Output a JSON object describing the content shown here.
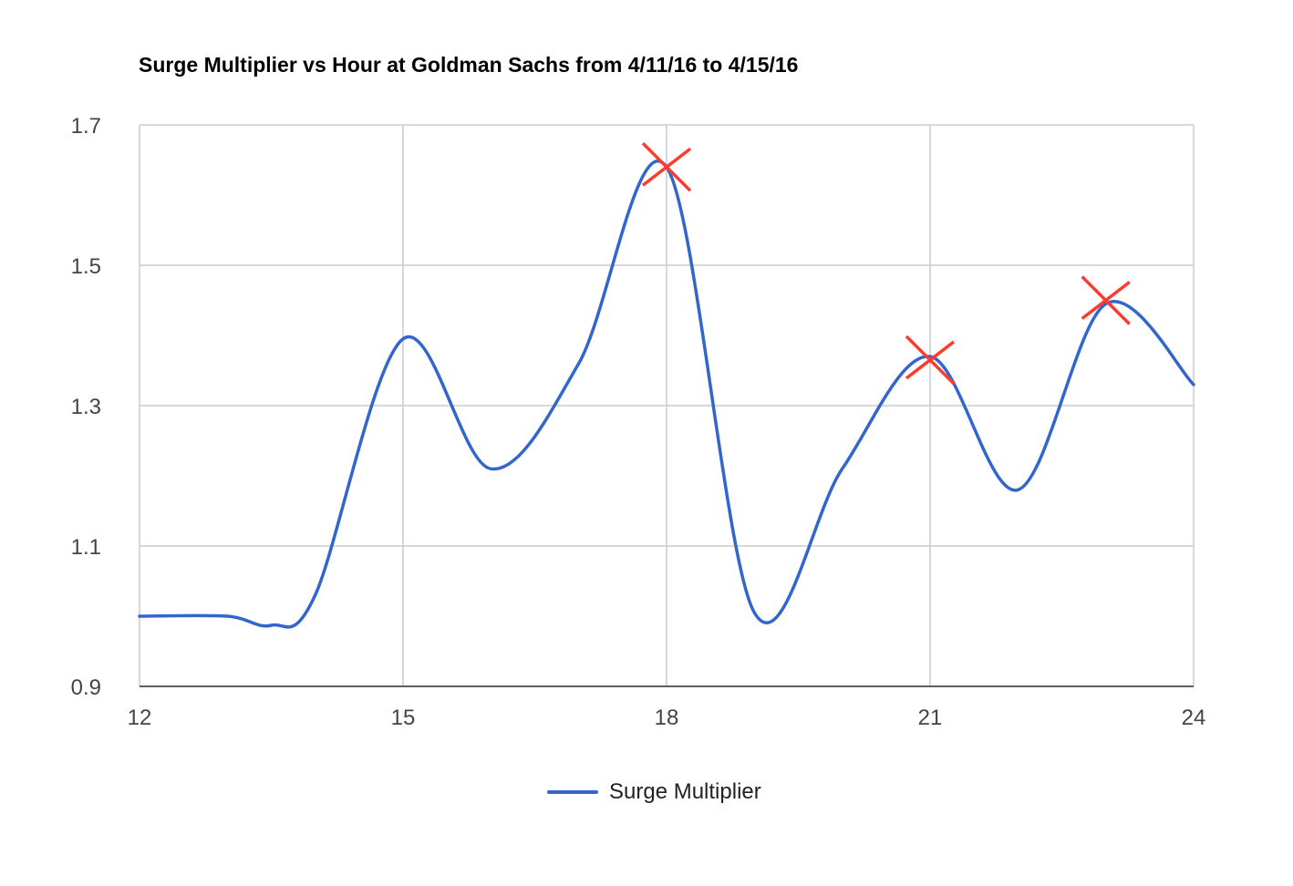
{
  "chart_data": {
    "type": "line",
    "title": "Surge Multiplier vs Hour at Goldman Sachs from 4/11/16 to 4/15/16",
    "xlabel": "",
    "ylabel": "",
    "xlim": [
      12,
      24
    ],
    "ylim": [
      0.9,
      1.7
    ],
    "x_ticks": [
      "12",
      "15",
      "18",
      "21",
      "24"
    ],
    "y_ticks": [
      "0.9",
      "1.1",
      "1.3",
      "1.5",
      "1.7"
    ],
    "grid": true,
    "smooth": true,
    "legend_position": "bottom",
    "series": [
      {
        "name": "Surge Multiplier",
        "color": "#3366cc",
        "x": [
          12,
          13,
          13.5,
          14,
          15,
          16,
          17,
          18,
          19,
          20,
          21,
          22,
          23,
          24
        ],
        "y": [
          1.0,
          1.0,
          0.987,
          1.03,
          1.395,
          1.21,
          1.36,
          1.64,
          1.005,
          1.21,
          1.37,
          1.18,
          1.445,
          1.33
        ]
      }
    ],
    "annotations": {
      "type": "x-marker",
      "color": "#ff3b30",
      "points": [
        {
          "x": 18,
          "y": 1.64
        },
        {
          "x": 21,
          "y": 1.365
        },
        {
          "x": 23,
          "y": 1.45
        }
      ]
    }
  }
}
